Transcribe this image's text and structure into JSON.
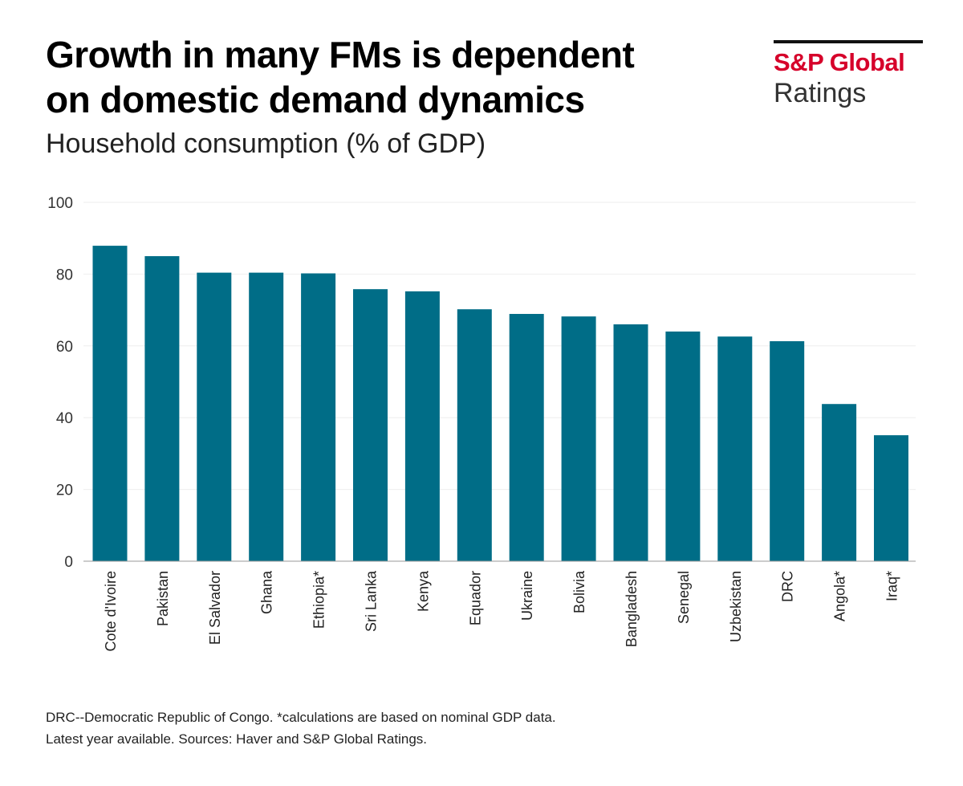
{
  "title_line1": "Growth in many FMs is dependent",
  "title_line2": "on domestic demand dynamics",
  "subtitle": "Household consumption (% of GDP)",
  "logo": {
    "top": "S&P Global",
    "bottom": "Ratings",
    "brand_color": "#d6002a"
  },
  "footnote_line1": "DRC--Democratic Republic of Congo. *calculations are based on nominal GDP data.",
  "footnote_line2": "Latest year available. Sources: Haver and S&P Global Ratings.",
  "chart_data": {
    "type": "bar",
    "title": "Household consumption (% of GDP)",
    "categories": [
      "Cote d'Ivoire",
      "Pakistan",
      "El Salvador",
      "Ghana",
      "Ethiopia*",
      "Sri Lanka",
      "Kenya",
      "Equador",
      "Ukraine",
      "Bolivia",
      "Bangladesh",
      "Senegal",
      "Uzbekistan",
      "DRC",
      "Angola*",
      "Iraq*"
    ],
    "values": [
      87.9,
      85.0,
      80.4,
      80.4,
      80.2,
      75.8,
      75.2,
      70.2,
      68.9,
      68.2,
      66.0,
      64.0,
      62.6,
      61.3,
      43.8,
      35.1
    ],
    "ylim": [
      0,
      100
    ],
    "yticks": [
      0,
      20,
      40,
      60,
      80,
      100
    ],
    "grid": true,
    "bar_color": "#006d87",
    "xlabel": "",
    "ylabel": ""
  }
}
